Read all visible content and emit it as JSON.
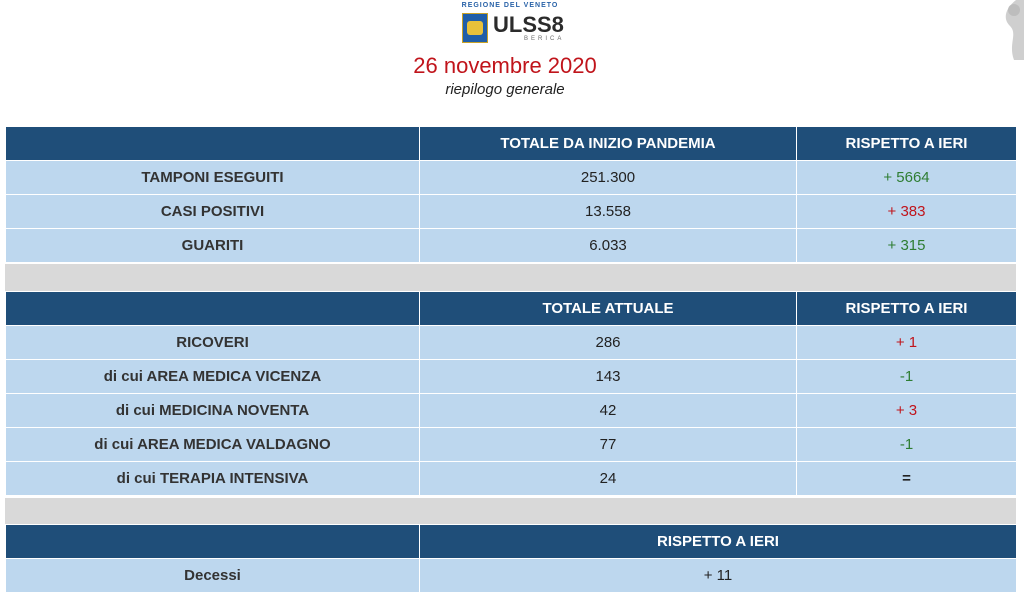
{
  "header": {
    "region_text": "REGIONE DEL VENETO",
    "brand": "ULSS8",
    "brand_sub": "BERICA",
    "date": "26 novembre 2020",
    "subtitle": "riepilogo generale"
  },
  "table1": {
    "headers": [
      "",
      "TOTALE DA INIZIO PANDEMIA",
      "RISPETTO A IERI"
    ],
    "rows": [
      {
        "label": "TAMPONI ESEGUITI",
        "total": "251.300",
        "delta": "+ 5664",
        "delta_color": "green"
      },
      {
        "label": "CASI POSITIVI",
        "total": "13.558",
        "delta": "+ 383",
        "delta_color": "red"
      },
      {
        "label": "GUARITI",
        "total": "6.033",
        "delta": "+ 315",
        "delta_color": "green"
      }
    ]
  },
  "table2": {
    "headers": [
      "",
      "TOTALE ATTUALE",
      "RISPETTO A IERI"
    ],
    "rows": [
      {
        "label": "RICOVERI",
        "total": "286",
        "delta": "+ 1",
        "delta_color": "red"
      },
      {
        "label": "di cui AREA MEDICA VICENZA",
        "total": "143",
        "delta": "-1",
        "delta_color": "green"
      },
      {
        "label": "di cui MEDICINA NOVENTA",
        "total": "42",
        "delta": "+ 3",
        "delta_color": "red"
      },
      {
        "label": "di cui AREA MEDICA VALDAGNO",
        "total": "77",
        "delta": "-1",
        "delta_color": "green"
      },
      {
        "label": "di cui TERAPIA INTENSIVA",
        "total": "24",
        "delta": "=",
        "delta_color": "black"
      }
    ]
  },
  "table3": {
    "headers": [
      "",
      "RISPETTO A IERI"
    ],
    "rows": [
      {
        "label": "Decessi",
        "delta": "+ 11"
      }
    ]
  },
  "colors": {
    "header_bg": "#1f4e79",
    "row_bg": "#bdd7ee",
    "gap_bg": "#d9d9d9",
    "date_red": "#c0141b",
    "delta_green": "#2e7d32",
    "delta_red": "#c0141b"
  }
}
